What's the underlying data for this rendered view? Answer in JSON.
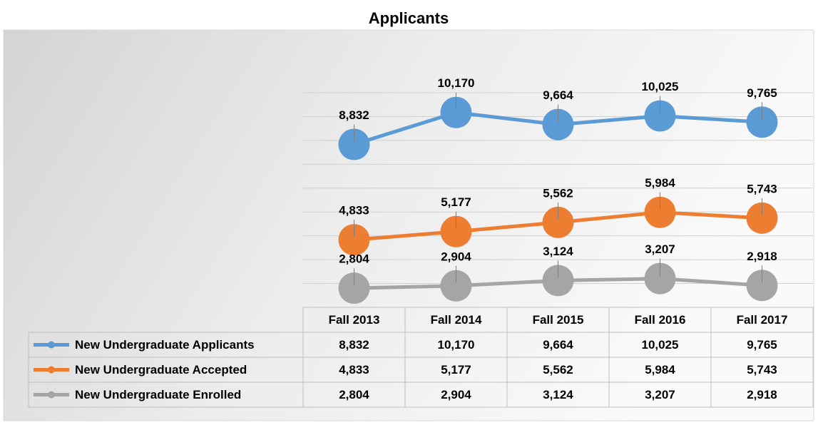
{
  "chart_data": {
    "type": "line",
    "title": "Applicants",
    "categories": [
      "Fall 2013",
      "Fall 2014",
      "Fall 2015",
      "Fall 2016",
      "Fall 2017"
    ],
    "series": [
      {
        "name": "New Undergraduate Applicants",
        "color": "#5b9bd5",
        "values": [
          8832,
          10170,
          9664,
          10025,
          9765
        ],
        "value_labels": [
          "8,832",
          "10,170",
          "9,664",
          "10,025",
          "9,765"
        ]
      },
      {
        "name": "New Undergraduate Accepted",
        "color": "#ed7d31",
        "values": [
          4833,
          5177,
          5562,
          5984,
          5743
        ],
        "value_labels": [
          "4,833",
          "5,177",
          "5,562",
          "5,984",
          "5,743"
        ]
      },
      {
        "name": "New Undergraduate Enrolled",
        "color": "#a5a5a5",
        "values": [
          2804,
          2904,
          3124,
          3207,
          2918
        ],
        "value_labels": [
          "2,804",
          "2,904",
          "3,124",
          "3,207",
          "2,918"
        ]
      }
    ],
    "ylim": [
      2000,
      11000
    ],
    "yticks": [
      3000,
      4000,
      5000,
      6000,
      7000,
      8000,
      9000,
      10000,
      11000
    ],
    "grid": true
  }
}
